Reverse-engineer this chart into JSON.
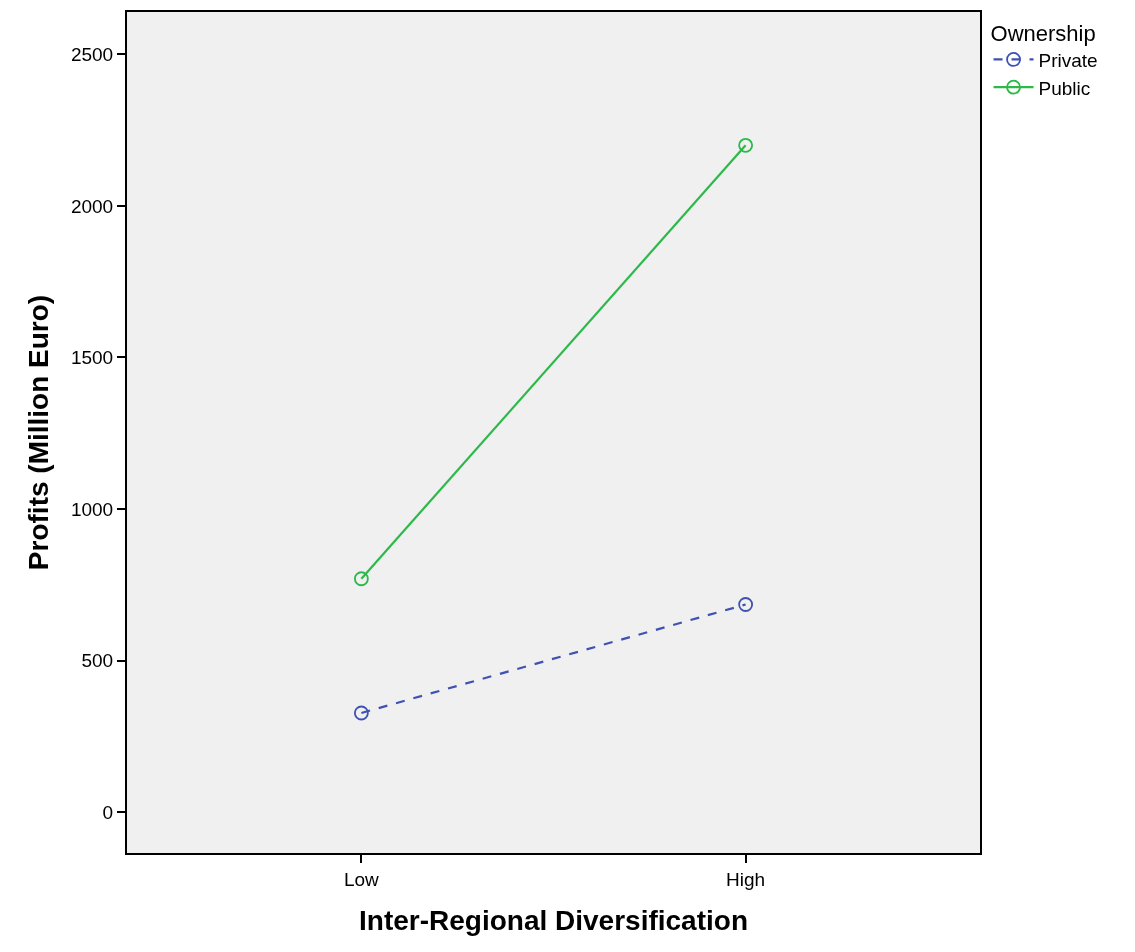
{
  "chart_data": {
    "type": "line",
    "xlabel": "Inter-Regional Diversification",
    "ylabel": "Profits (Million Euro)",
    "legend_title": "Ownership",
    "categories": [
      "Low",
      "High"
    ],
    "series": [
      {
        "name": "Private",
        "color": "#3f51b1",
        "values": [
          327,
          685
        ],
        "line_style": "dashed"
      },
      {
        "name": "Public",
        "color": "#2db84a",
        "values": [
          770,
          2200
        ],
        "line_style": "solid"
      }
    ],
    "ylim": [
      -135,
      2640
    ],
    "yticks": [
      0,
      500,
      1000,
      1500,
      2000,
      2500
    ],
    "grid": false,
    "legend": "top right",
    "marker": "circle"
  }
}
